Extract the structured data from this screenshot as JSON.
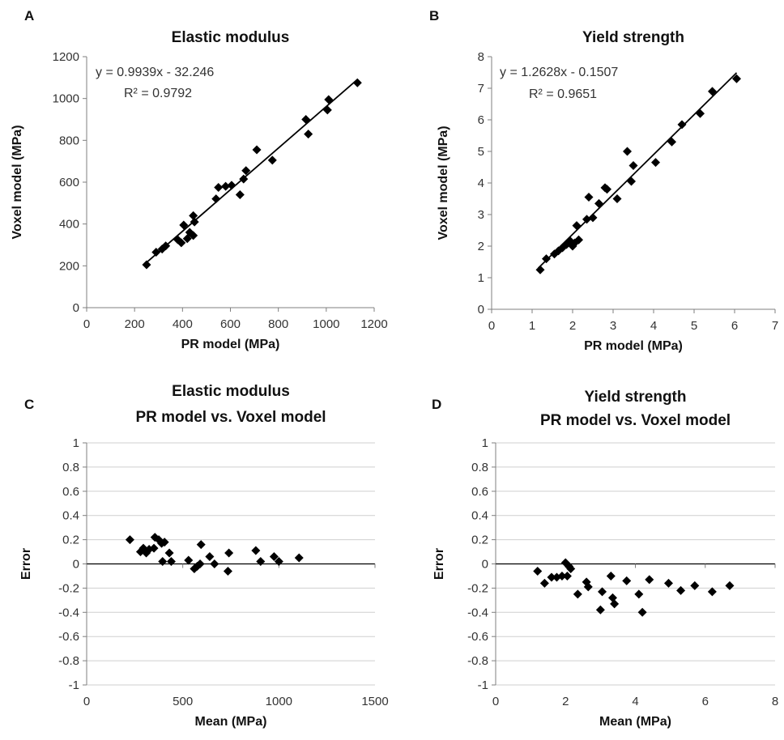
{
  "chart_data": [
    {
      "panel": "A",
      "type": "scatter",
      "title": "Elastic modulus",
      "xlabel": "PR model (MPa)",
      "ylabel": "Voxel model (MPa)",
      "xlim": [
        0,
        1200
      ],
      "ylim": [
        0,
        1200
      ],
      "xticks": [
        0,
        200,
        400,
        600,
        800,
        1000,
        1200
      ],
      "yticks": [
        0,
        200,
        400,
        600,
        800,
        1000,
        1200
      ],
      "grid": false,
      "annotation": [
        "y = 0.9939x - 32.246",
        "R² = 0.9792"
      ],
      "trendline": {
        "slope": 0.9939,
        "intercept": -32.246,
        "x_range": [
          250,
          1130
        ]
      },
      "points": [
        [
          250,
          205
        ],
        [
          290,
          265
        ],
        [
          315,
          280
        ],
        [
          330,
          295
        ],
        [
          380,
          325
        ],
        [
          395,
          310
        ],
        [
          405,
          395
        ],
        [
          420,
          330
        ],
        [
          430,
          360
        ],
        [
          445,
          345
        ],
        [
          445,
          440
        ],
        [
          450,
          410
        ],
        [
          540,
          520
        ],
        [
          550,
          575
        ],
        [
          580,
          580
        ],
        [
          605,
          585
        ],
        [
          640,
          540
        ],
        [
          655,
          615
        ],
        [
          665,
          655
        ],
        [
          710,
          755
        ],
        [
          775,
          705
        ],
        [
          915,
          900
        ],
        [
          925,
          830
        ],
        [
          1005,
          945
        ],
        [
          1010,
          995
        ],
        [
          1130,
          1075
        ]
      ]
    },
    {
      "panel": "B",
      "type": "scatter",
      "title": "Yield strength",
      "xlabel": "PR model (MPa)",
      "ylabel": "Voxel model (MPa)",
      "xlim": [
        0,
        7
      ],
      "ylim": [
        0,
        8
      ],
      "xticks": [
        0,
        1,
        2,
        3,
        4,
        5,
        6,
        7
      ],
      "yticks": [
        0,
        1,
        2,
        3,
        4,
        5,
        6,
        7,
        8
      ],
      "grid": false,
      "annotation": [
        "y = 1.2628x - 0.1507",
        "R² = 0.9651"
      ],
      "trendline": {
        "slope": 1.2628,
        "intercept": -0.1507,
        "x_range": [
          1.15,
          6.05
        ]
      },
      "points": [
        [
          1.2,
          1.25
        ],
        [
          1.35,
          1.6
        ],
        [
          1.55,
          1.75
        ],
        [
          1.65,
          1.85
        ],
        [
          1.75,
          1.95
        ],
        [
          1.85,
          2.05
        ],
        [
          1.95,
          2.15
        ],
        [
          2.0,
          2.0
        ],
        [
          2.05,
          2.1
        ],
        [
          2.1,
          2.65
        ],
        [
          2.15,
          2.2
        ],
        [
          2.35,
          2.85
        ],
        [
          2.4,
          3.55
        ],
        [
          2.5,
          2.9
        ],
        [
          2.65,
          3.35
        ],
        [
          2.8,
          3.85
        ],
        [
          2.85,
          3.8
        ],
        [
          3.1,
          3.5
        ],
        [
          3.35,
          5.0
        ],
        [
          3.45,
          4.05
        ],
        [
          3.5,
          4.55
        ],
        [
          4.05,
          4.65
        ],
        [
          4.45,
          5.3
        ],
        [
          4.7,
          5.85
        ],
        [
          5.15,
          6.2
        ],
        [
          5.45,
          6.9
        ],
        [
          6.05,
          7.3
        ]
      ]
    },
    {
      "panel": "C",
      "type": "scatter",
      "title": [
        "Elastic modulus",
        "PR model vs. Voxel model"
      ],
      "xlabel": "Mean (MPa)",
      "ylabel": "Error",
      "xlim": [
        0,
        1500
      ],
      "ylim": [
        -1,
        1
      ],
      "xticks": [
        0,
        500,
        1000,
        1500
      ],
      "yticks": [
        -1,
        -0.8,
        -0.6,
        -0.4,
        -0.2,
        0,
        0.2,
        0.4,
        0.6,
        0.8,
        1
      ],
      "grid": true,
      "points": [
        [
          225,
          0.2
        ],
        [
          280,
          0.1
        ],
        [
          295,
          0.13
        ],
        [
          310,
          0.09
        ],
        [
          325,
          0.12
        ],
        [
          350,
          0.13
        ],
        [
          355,
          0.22
        ],
        [
          375,
          0.2
        ],
        [
          390,
          0.17
        ],
        [
          395,
          0.02
        ],
        [
          405,
          0.18
        ],
        [
          430,
          0.09
        ],
        [
          440,
          0.02
        ],
        [
          530,
          0.03
        ],
        [
          560,
          -0.04
        ],
        [
          575,
          -0.02
        ],
        [
          590,
          0.0
        ],
        [
          595,
          0.16
        ],
        [
          640,
          0.06
        ],
        [
          665,
          0.0
        ],
        [
          735,
          -0.06
        ],
        [
          740,
          0.09
        ],
        [
          880,
          0.11
        ],
        [
          905,
          0.02
        ],
        [
          975,
          0.06
        ],
        [
          1000,
          0.02
        ],
        [
          1105,
          0.05
        ]
      ]
    },
    {
      "panel": "D",
      "type": "scatter",
      "title": [
        "Yield strength",
        "PR model vs. Voxel model"
      ],
      "xlabel": "Mean (MPa)",
      "ylabel": "Error",
      "xlim": [
        0,
        8
      ],
      "ylim": [
        -1,
        1
      ],
      "xticks": [
        0,
        2,
        4,
        6,
        8
      ],
      "yticks": [
        -1,
        -0.8,
        -0.6,
        -0.4,
        -0.2,
        0,
        0.2,
        0.4,
        0.6,
        0.8,
        1
      ],
      "grid": true,
      "points": [
        [
          1.2,
          -0.06
        ],
        [
          1.4,
          -0.16
        ],
        [
          1.6,
          -0.11
        ],
        [
          1.75,
          -0.11
        ],
        [
          1.9,
          -0.1
        ],
        [
          2.0,
          0.01
        ],
        [
          2.05,
          -0.1
        ],
        [
          2.1,
          -0.02
        ],
        [
          2.15,
          -0.04
        ],
        [
          2.35,
          -0.25
        ],
        [
          2.6,
          -0.15
        ],
        [
          2.65,
          -0.19
        ],
        [
          3.0,
          -0.38
        ],
        [
          3.05,
          -0.23
        ],
        [
          3.3,
          -0.1
        ],
        [
          3.35,
          -0.28
        ],
        [
          3.4,
          -0.33
        ],
        [
          3.75,
          -0.14
        ],
        [
          4.1,
          -0.25
        ],
        [
          4.2,
          -0.4
        ],
        [
          4.4,
          -0.13
        ],
        [
          4.95,
          -0.16
        ],
        [
          5.3,
          -0.22
        ],
        [
          5.7,
          -0.18
        ],
        [
          6.2,
          -0.23
        ],
        [
          6.7,
          -0.18
        ]
      ]
    }
  ]
}
